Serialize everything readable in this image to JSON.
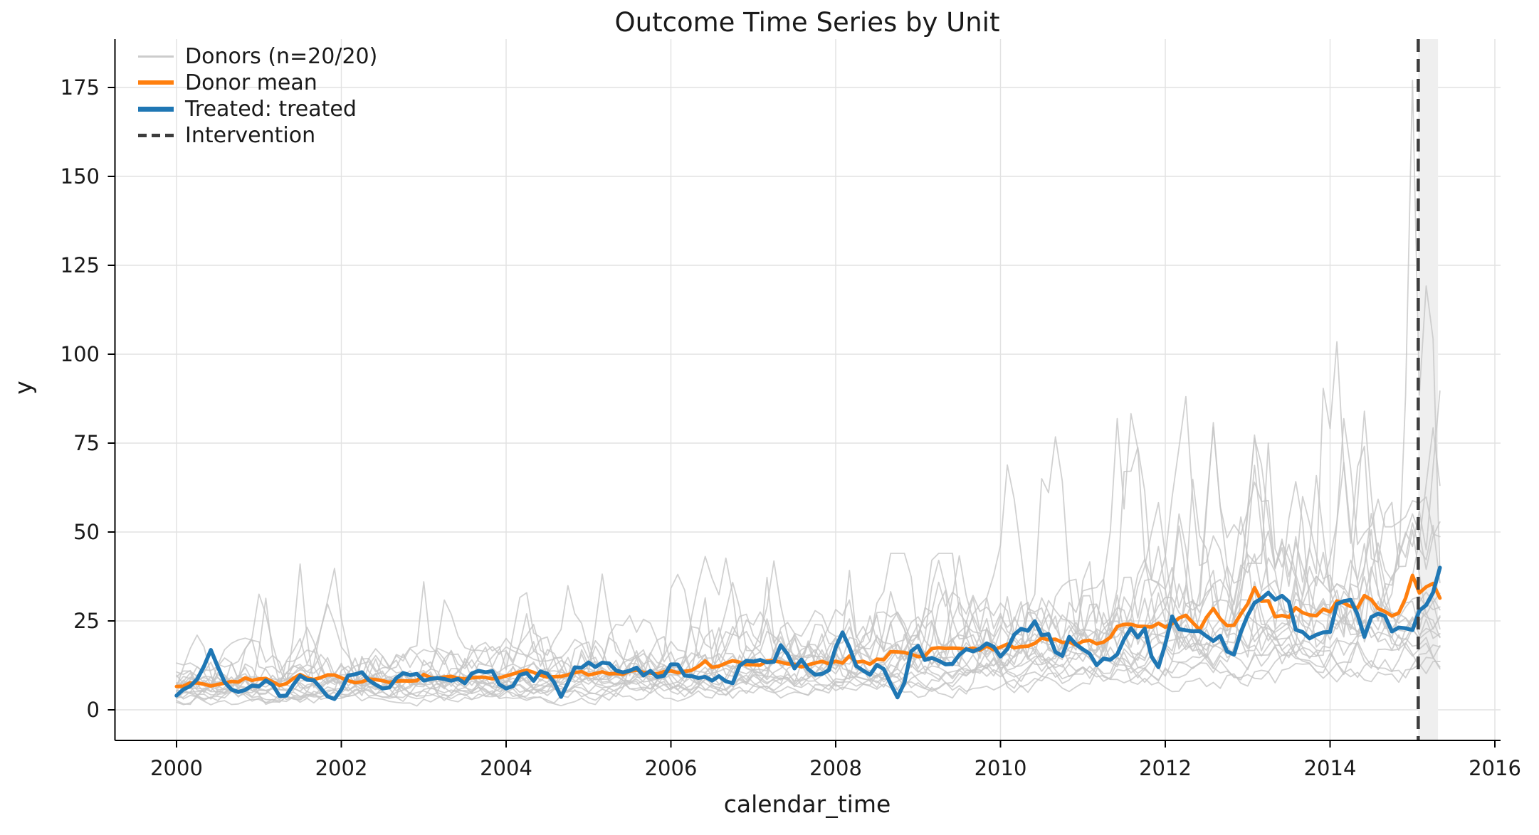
{
  "figure": {
    "title": "Outcome Time Series by Unit",
    "xlabel": "calendar_time",
    "ylabel": "y"
  },
  "legend": {
    "position": "upper left",
    "items": [
      {
        "label": "Donors (n=20/20)",
        "color": "#cccccc",
        "style": "solid-thin"
      },
      {
        "label": "Donor mean",
        "color": "#ff7f0e",
        "style": "solid-thick"
      },
      {
        "label": "Treated: treated",
        "color": "#1f77b4",
        "style": "solid-thick"
      },
      {
        "label": "Intervention",
        "color": "#3d3d3d",
        "style": "dashed"
      }
    ]
  },
  "axes": {
    "x_tick_labels": [
      "2000",
      "2002",
      "2004",
      "2006",
      "2008",
      "2010",
      "2012",
      "2014",
      "2016"
    ],
    "y_tick_labels": [
      "0",
      "25",
      "50",
      "75",
      "100",
      "125",
      "150",
      "175"
    ]
  },
  "colors": {
    "donor_line": "#c6c6c6",
    "donor_mean": "#ff7f0e",
    "treated": "#1f77b4",
    "intervention": "#3d3d3d",
    "band": "#efefef",
    "grid": "#e2e2e2",
    "spine": "#000000",
    "text": "#1a1a1a"
  },
  "chart_data": {
    "type": "line",
    "frequency": "monthly",
    "x_start": 2000.0,
    "x_end": 2015.333,
    "points": 185,
    "xlim": [
      1999.25,
      2016.07
    ],
    "ylim": [
      -8.6,
      188.6
    ],
    "x_ticks": [
      2000,
      2002,
      2004,
      2006,
      2008,
      2010,
      2012,
      2014,
      2016
    ],
    "y_ticks": [
      0,
      25,
      50,
      75,
      100,
      125,
      150,
      175
    ],
    "grid": true,
    "legend_position": "upper left",
    "intervention_x": 2015.07,
    "post_band": [
      2015.07,
      2015.31
    ],
    "seed": 20150607,
    "donor_count": 20,
    "volatile_donor_start_index": 14,
    "donor_multipliers": [
      0.4,
      0.5,
      0.55,
      0.6,
      0.65,
      0.7,
      0.8,
      0.85,
      0.9,
      0.95,
      1.0,
      1.05,
      1.1,
      1.2,
      1.3,
      1.4,
      1.5,
      1.6,
      1.75,
      1.2
    ],
    "donor_mean_anchors": [
      [
        2000.0,
        7.2
      ],
      [
        2002.0,
        7.6
      ],
      [
        2004.0,
        8.6
      ],
      [
        2006.0,
        10.5
      ],
      [
        2008.0,
        13.0
      ],
      [
        2010.0,
        16.0
      ],
      [
        2011.0,
        18.5
      ],
      [
        2012.0,
        21.0
      ],
      [
        2013.0,
        23.5
      ],
      [
        2014.0,
        25.5
      ],
      [
        2014.8,
        26.5
      ],
      [
        2015.333,
        28.0
      ]
    ],
    "treated_pins": [
      [
        2000.0,
        4.0
      ],
      [
        2000.42,
        17.0
      ],
      [
        2000.75,
        5.0
      ],
      [
        2001.3,
        3.0
      ],
      [
        2001.9,
        2.5
      ],
      [
        2002.5,
        6.0
      ],
      [
        2003.2,
        9.0
      ],
      [
        2004.0,
        6.0
      ],
      [
        2004.67,
        3.5
      ],
      [
        2005.5,
        11.0
      ],
      [
        2006.3,
        8.0
      ],
      [
        2007.35,
        19.0
      ],
      [
        2007.8,
        9.0
      ],
      [
        2008.08,
        22.0
      ],
      [
        2008.75,
        3.5
      ],
      [
        2009.3,
        13.0
      ],
      [
        2010.0,
        15.0
      ],
      [
        2010.4,
        26.0
      ],
      [
        2011.0,
        17.0
      ],
      [
        2011.9,
        11.0
      ],
      [
        2012.3,
        21.0
      ],
      [
        2012.8,
        15.0
      ],
      [
        2013.4,
        33.0
      ],
      [
        2013.8,
        20.0
      ],
      [
        2014.2,
        31.0
      ],
      [
        2014.6,
        27.0
      ],
      [
        2014.92,
        23.0
      ],
      [
        2015.1,
        28.0
      ],
      [
        2015.25,
        33.0
      ],
      [
        2015.333,
        40.0
      ]
    ],
    "notable_donor_peaks": [
      [
        2001.08,
        32,
        14
      ],
      [
        2001.5,
        41,
        15
      ],
      [
        2003.0,
        36,
        16
      ],
      [
        2004.3,
        30,
        17
      ],
      [
        2005.3,
        30,
        18
      ],
      [
        2006.4,
        35,
        14
      ],
      [
        2007.17,
        38,
        15
      ],
      [
        2008.17,
        40,
        16
      ],
      [
        2009.3,
        42,
        17
      ],
      [
        2010.5,
        65,
        18
      ],
      [
        2011.05,
        52,
        14
      ],
      [
        2011.5,
        67,
        15
      ],
      [
        2012.17,
        63,
        16
      ],
      [
        2012.35,
        72,
        17
      ],
      [
        2013.05,
        80,
        18
      ],
      [
        2013.25,
        75,
        14
      ],
      [
        2013.7,
        75,
        15
      ],
      [
        2013.95,
        113,
        18
      ],
      [
        2014.1,
        115,
        18
      ],
      [
        2014.38,
        95,
        18
      ],
      [
        2014.55,
        74,
        16
      ],
      [
        2015.0,
        177,
        19
      ],
      [
        2015.2,
        149,
        19
      ]
    ],
    "series": [
      {
        "name": "Donors (n=20/20)",
        "role": "donors"
      },
      {
        "name": "Donor mean",
        "role": "mean"
      },
      {
        "name": "Treated: treated",
        "role": "treated"
      },
      {
        "name": "Intervention",
        "role": "event-line"
      }
    ]
  }
}
